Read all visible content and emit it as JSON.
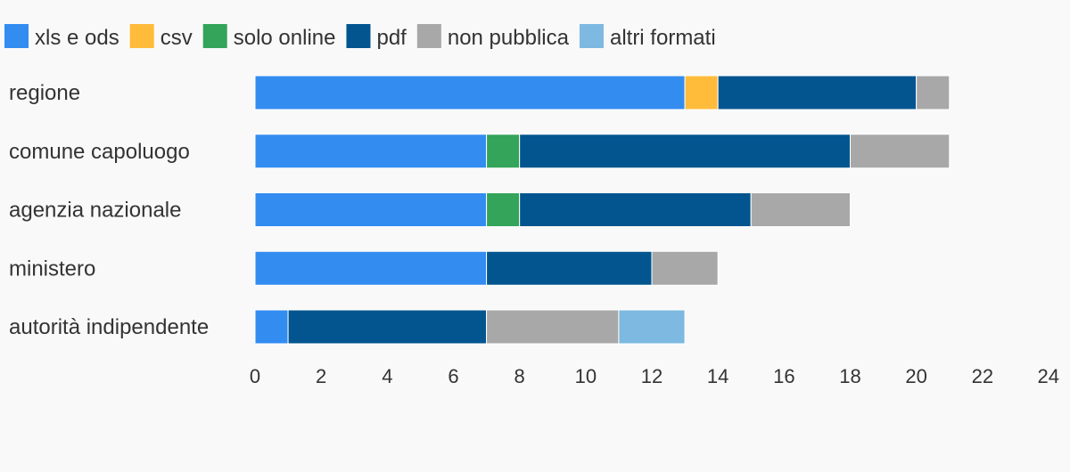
{
  "chart_data": {
    "type": "bar",
    "orientation": "horizontal",
    "stacked": true,
    "categories": [
      "regione",
      "comune capoluogo",
      "agenzia nazionale",
      "ministero",
      "autorità indipendente"
    ],
    "series": [
      {
        "name": "xls e ods",
        "color": "#338cf0",
        "values": [
          13,
          7,
          7,
          7,
          1
        ]
      },
      {
        "name": "csv",
        "color": "#ffbb3a",
        "values": [
          1,
          0,
          0,
          0,
          0
        ]
      },
      {
        "name": "solo online",
        "color": "#33a45a",
        "values": [
          0,
          1,
          1,
          0,
          0
        ]
      },
      {
        "name": "pdf",
        "color": "#03558f",
        "values": [
          6,
          10,
          7,
          5,
          6
        ]
      },
      {
        "name": "non pubblica",
        "color": "#a8a8a8",
        "values": [
          1,
          3,
          3,
          2,
          4
        ]
      },
      {
        "name": "altri formati",
        "color": "#7db9e1",
        "values": [
          0,
          0,
          0,
          0,
          2
        ]
      }
    ],
    "xlim": [
      0,
      24
    ],
    "xticks": [
      "0",
      "2",
      "4",
      "6",
      "8",
      "10",
      "12",
      "14",
      "16",
      "18",
      "20",
      "22",
      "24"
    ],
    "legend_position": "top-left",
    "grid": false
  }
}
